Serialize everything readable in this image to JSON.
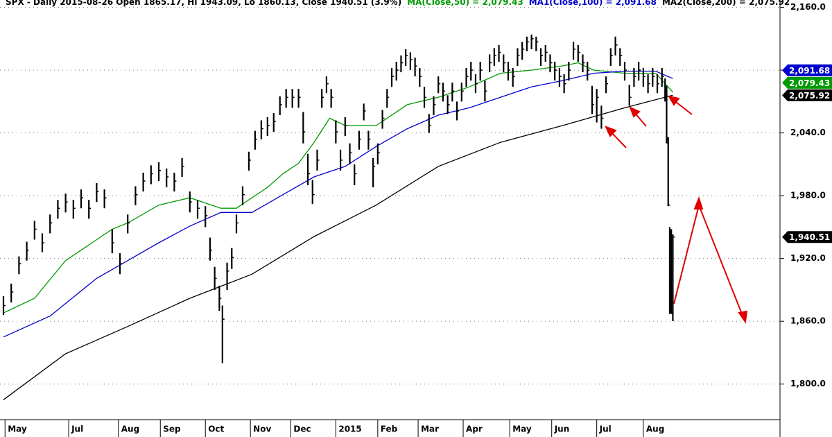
{
  "chart_data": {
    "type": "ohlc",
    "title": "SPX - Daily 2015-08-26 Open 1865.17, Hi 1943.09, Lo 1860.13, Close 1940.51 (3.9%)",
    "xlim": [
      0,
      500
    ],
    "ylim": [
      1766,
      2167
    ],
    "grid": true,
    "yticks": [
      {
        "value": 2160,
        "label": "2,160.0"
      },
      {
        "value": 2100,
        "label": "2,100.0"
      },
      {
        "value": 2040,
        "label": "2,040.0"
      },
      {
        "value": 1980,
        "label": "1,980.0"
      },
      {
        "value": 1920,
        "label": "1,920.0"
      },
      {
        "value": 1860,
        "label": "1,860.0"
      },
      {
        "value": 1800,
        "label": "1,800.0"
      }
    ],
    "xticks": [
      {
        "value": 1,
        "label": "May"
      },
      {
        "value": 42,
        "label": "Jul"
      },
      {
        "value": 74,
        "label": "Aug"
      },
      {
        "value": 101,
        "label": "Sep"
      },
      {
        "value": 130,
        "label": "Oct"
      },
      {
        "value": 159,
        "label": "Nov"
      },
      {
        "value": 185,
        "label": "Dec"
      },
      {
        "value": 214,
        "label": "2015"
      },
      {
        "value": 241,
        "label": "Feb"
      },
      {
        "value": 267,
        "label": "Mar"
      },
      {
        "value": 296,
        "label": "Apr"
      },
      {
        "value": 326,
        "label": "May"
      },
      {
        "value": 353,
        "label": "Jun"
      },
      {
        "value": 382,
        "label": "Jul"
      },
      {
        "value": 412,
        "label": "Aug"
      }
    ],
    "price": {
      "color": "#000000",
      "x": [
        0,
        5,
        10,
        15,
        20,
        25,
        30,
        35,
        40,
        45,
        50,
        55,
        60,
        65,
        70,
        75,
        80,
        85,
        90,
        95,
        100,
        105,
        110,
        115,
        120,
        125,
        130,
        133,
        136,
        139,
        141,
        144,
        147,
        150,
        154,
        158,
        162,
        166,
        170,
        174,
        178,
        182,
        186,
        190,
        193,
        196,
        199,
        202,
        205,
        208,
        211,
        214,
        217,
        220,
        223,
        226,
        229,
        232,
        235,
        238,
        241,
        244,
        247,
        250,
        253,
        256,
        259,
        262,
        265,
        268,
        271,
        274,
        277,
        280,
        283,
        286,
        289,
        292,
        295,
        298,
        301,
        304,
        307,
        310,
        313,
        316,
        319,
        322,
        325,
        328,
        331,
        334,
        337,
        340,
        343,
        346,
        349,
        352,
        355,
        358,
        361,
        364,
        367,
        370,
        373,
        376,
        379,
        382,
        385,
        388,
        391,
        394,
        397,
        400,
        403,
        406,
        409,
        412,
        415,
        418,
        421,
        424,
        426,
        427,
        428,
        429,
        430,
        431
      ],
      "close": [
        1875,
        1888,
        1915,
        1928,
        1948,
        1935,
        1954,
        1968,
        1974,
        1968,
        1978,
        1968,
        1984,
        1978,
        1935,
        1915,
        1954,
        1981,
        1994,
        2001,
        2004,
        1998,
        1994,
        2008,
        1974,
        1968,
        1961,
        1928,
        1901,
        1882,
        1862,
        1908,
        1921,
        1954,
        1981,
        2014,
        2034,
        2044,
        2047,
        2051,
        2067,
        2074,
        2074,
        2074,
        2041,
        2001,
        1981,
        2014,
        2074,
        2087,
        2074,
        2041,
        2014,
        2047,
        2021,
        2001,
        2034,
        2061,
        2034,
        2008,
        2021,
        2054,
        2074,
        2094,
        2100,
        2107,
        2114,
        2110,
        2104,
        2094,
        2074,
        2047,
        2067,
        2087,
        2080,
        2067,
        2080,
        2061,
        2080,
        2094,
        2100,
        2087,
        2100,
        2080,
        2107,
        2114,
        2117,
        2107,
        2100,
        2094,
        2114,
        2120,
        2127,
        2130,
        2127,
        2114,
        2117,
        2107,
        2100,
        2094,
        2087,
        2100,
        2120,
        2117,
        2107,
        2100,
        2067,
        2074,
        2054,
        2087,
        2114,
        2124,
        2114,
        2100,
        2074,
        2094,
        2100,
        2094,
        2087,
        2094,
        2087,
        2094,
        2080,
        2035,
        1971,
        1893,
        1868,
        1940.51
      ],
      "high": [
        1884,
        1896,
        1922,
        1936,
        1956,
        1944,
        1962,
        1976,
        1982,
        1976,
        1986,
        1976,
        1992,
        1986,
        1948,
        1925,
        1962,
        1989,
        2002,
        2009,
        2012,
        2006,
        2002,
        2016,
        1984,
        1976,
        1970,
        1940,
        1912,
        1894,
        1875,
        1916,
        1930,
        1962,
        1989,
        2022,
        2042,
        2052,
        2055,
        2059,
        2075,
        2082,
        2082,
        2082,
        2060,
        2020,
        1995,
        2024,
        2082,
        2094,
        2082,
        2052,
        2024,
        2055,
        2030,
        2010,
        2042,
        2068,
        2042,
        2016,
        2030,
        2062,
        2082,
        2102,
        2108,
        2114,
        2120,
        2117,
        2112,
        2102,
        2084,
        2058,
        2075,
        2094,
        2088,
        2076,
        2088,
        2070,
        2088,
        2102,
        2108,
        2096,
        2108,
        2090,
        2115,
        2121,
        2124,
        2115,
        2108,
        2102,
        2121,
        2127,
        2132,
        2134,
        2132,
        2121,
        2124,
        2115,
        2108,
        2102,
        2096,
        2108,
        2127,
        2124,
        2115,
        2108,
        2085,
        2082,
        2066,
        2094,
        2121,
        2132,
        2121,
        2108,
        2086,
        2102,
        2108,
        2102,
        2096,
        2102,
        2096,
        2102,
        2092,
        2085,
        2036,
        1950,
        1948,
        1943.09
      ],
      "low": [
        1866,
        1878,
        1905,
        1918,
        1938,
        1926,
        1944,
        1958,
        1964,
        1958,
        1968,
        1958,
        1974,
        1968,
        1925,
        1905,
        1944,
        1971,
        1984,
        1991,
        1994,
        1988,
        1984,
        1998,
        1964,
        1958,
        1950,
        1918,
        1890,
        1870,
        1820,
        1890,
        1910,
        1944,
        1971,
        2004,
        2024,
        2034,
        2037,
        2041,
        2057,
        2064,
        2064,
        2064,
        2030,
        1990,
        1972,
        2004,
        2064,
        2078,
        2064,
        2030,
        2004,
        2037,
        2010,
        1990,
        2024,
        2052,
        2024,
        1988,
        2010,
        2044,
        2064,
        2084,
        2090,
        2098,
        2104,
        2100,
        2094,
        2084,
        2064,
        2040,
        2057,
        2078,
        2070,
        2058,
        2070,
        2052,
        2070,
        2084,
        2090,
        2078,
        2090,
        2070,
        2098,
        2104,
        2108,
        2098,
        2090,
        2084,
        2104,
        2110,
        2118,
        2120,
        2118,
        2104,
        2108,
        2098,
        2090,
        2084,
        2078,
        2090,
        2110,
        2108,
        2098,
        2090,
        2058,
        2050,
        2044,
        2078,
        2104,
        2114,
        2104,
        2090,
        2066,
        2084,
        2090,
        2084,
        2078,
        2084,
        2078,
        2084,
        2070,
        2030,
        1970,
        1867,
        1867,
        1860.13
      ]
    },
    "series": [
      {
        "name": "MA(Close,50) = 2,079.43",
        "color": "#009900",
        "x": [
          0,
          20,
          40,
          60,
          70,
          80,
          100,
          120,
          140,
          150,
          170,
          180,
          190,
          200,
          210,
          220,
          240,
          260,
          280,
          300,
          320,
          340,
          360,
          370,
          380,
          400,
          420,
          431
        ],
        "values": [
          1868,
          1882,
          1918,
          1938,
          1948,
          1954,
          1971,
          1978,
          1968,
          1968,
          1988,
          2001,
          2011,
          2031,
          2054,
          2047,
          2047,
          2067,
          2074,
          2084,
          2097,
          2100,
          2104,
          2107,
          2100,
          2097,
          2097,
          2079
        ]
      },
      {
        "name": "MA1(Close,100) = 2,091.68",
        "color": "#0000cc",
        "x": [
          0,
          30,
          60,
          80,
          100,
          120,
          140,
          160,
          180,
          200,
          220,
          240,
          260,
          280,
          300,
          320,
          340,
          360,
          380,
          400,
          420,
          431
        ],
        "values": [
          1845,
          1865,
          1901,
          1918,
          1935,
          1951,
          1964,
          1964,
          1981,
          1998,
          2008,
          2027,
          2044,
          2057,
          2064,
          2074,
          2084,
          2090,
          2097,
          2099,
          2099,
          2092
        ]
      },
      {
        "name": "MA2(Close,200) = 2,075.92",
        "color": "#000000",
        "x": [
          0,
          40,
          80,
          120,
          160,
          200,
          240,
          280,
          320,
          360,
          400,
          431
        ],
        "values": [
          1785,
          1829,
          1855,
          1882,
          1905,
          1941,
          1971,
          2008,
          2031,
          2047,
          2064,
          2076
        ]
      }
    ],
    "price_labels": [
      {
        "value": 2091.68,
        "label": "2,091.68",
        "color": "#0000cc"
      },
      {
        "value": 2079.43,
        "label": "2,079.43",
        "color": "#009900"
      },
      {
        "value": 2075.92,
        "label": "2,075.92",
        "color": "#000000"
      },
      {
        "value": 1940.51,
        "label": "1,940.51",
        "color": "#000000"
      }
    ]
  }
}
